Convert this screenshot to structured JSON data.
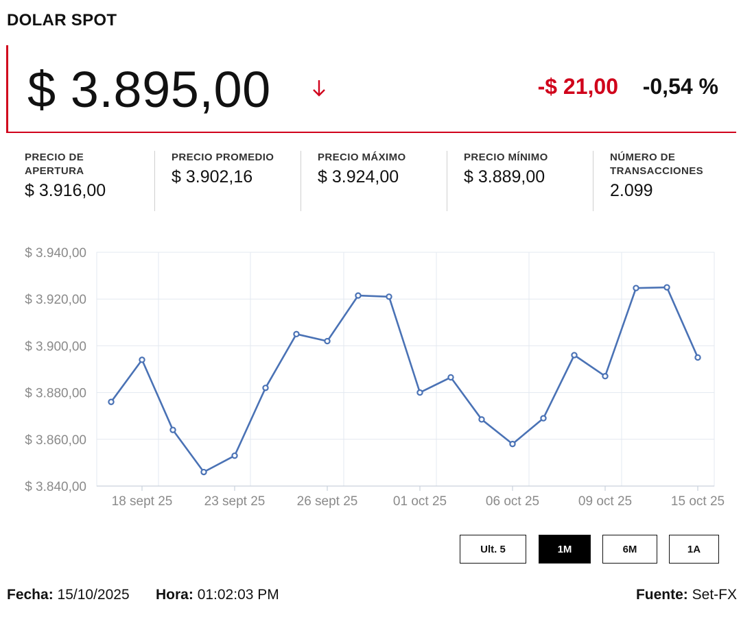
{
  "header": {
    "title": "DOLAR SPOT"
  },
  "quote": {
    "price": "$ 3.895,00",
    "direction": "down",
    "change_abs": "-$ 21,00",
    "change_pct": "-0,54 %",
    "colors": {
      "negative": "#d0021b",
      "accent_border": "#d0021b"
    }
  },
  "stats": [
    {
      "label": "PRECIO DE APERTURA",
      "value": "$ 3.916,00"
    },
    {
      "label": "PRECIO PROMEDIO",
      "value": "$ 3.902,16"
    },
    {
      "label": "PRECIO MÁXIMO",
      "value": "$ 3.924,00"
    },
    {
      "label": "PRECIO MÍNIMO",
      "value": "$ 3.889,00"
    },
    {
      "label": "NÚMERO DE TRANSACCIONES",
      "value": "2.099"
    }
  ],
  "chart_data": {
    "type": "line",
    "ylim": [
      3840,
      3940
    ],
    "yticks": [
      3840,
      3860,
      3880,
      3900,
      3920,
      3940
    ],
    "ytick_labels": [
      "$ 3.840,00",
      "$ 3.860,00",
      "$ 3.880,00",
      "$ 3.900,00",
      "$ 3.920,00",
      "$ 3.940,00"
    ],
    "xtick_labels": [
      "18 sept 25",
      "23 sept 25",
      "26 sept 25",
      "01 oct 25",
      "06 oct 25",
      "09 oct 25",
      "15 oct 25"
    ],
    "xtick_index": [
      1,
      4,
      7,
      10,
      13,
      16,
      19
    ],
    "grid": true,
    "line_color": "#4a72b5",
    "series": [
      {
        "values": [
          3876,
          3894,
          3864,
          3846,
          3853,
          3882,
          3905,
          3902,
          3921.5,
          3921,
          3880,
          3886.5,
          3868.5,
          3858,
          3869,
          3896,
          3887,
          3924.7,
          3925,
          3895
        ]
      }
    ]
  },
  "range_buttons": [
    {
      "label": "Ult. 5",
      "active": false
    },
    {
      "label": "1M",
      "active": true
    },
    {
      "label": "6M",
      "active": false
    },
    {
      "label": "1A",
      "active": false
    }
  ],
  "footer": {
    "fecha_label": "Fecha:",
    "fecha_value": "15/10/2025",
    "hora_label": "Hora:",
    "hora_value": "01:02:03 PM",
    "fuente_label": "Fuente:",
    "fuente_value": "Set-FX"
  }
}
